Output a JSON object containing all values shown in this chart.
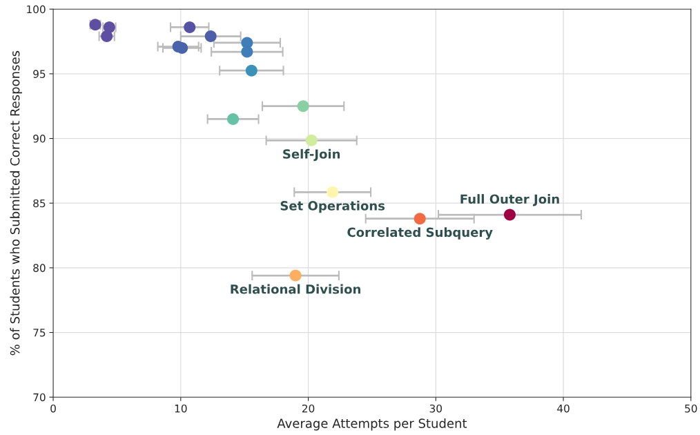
{
  "chart_data": {
    "type": "scatter",
    "xlabel": "Average Attempts per Student",
    "ylabel": "% of Students who Submitted Correct Responses",
    "x": [
      3.3,
      4.4,
      4.2,
      10.7,
      12.35,
      15.2,
      15.2,
      9.8,
      10.1,
      15.55,
      19.6,
      14.1,
      20.25,
      21.9,
      28.75,
      35.8,
      19.0
    ],
    "values": [
      98.8,
      98.6,
      97.9,
      98.6,
      97.9,
      97.4,
      96.7,
      97.1,
      97.0,
      95.25,
      92.5,
      91.5,
      89.85,
      85.85,
      83.8,
      84.1,
      79.4
    ],
    "xerrors": [
      0.4,
      0.5,
      0.6,
      1.5,
      2.35,
      2.6,
      2.8,
      1.6,
      1.5,
      2.5,
      3.2,
      2.0,
      3.55,
      3.0,
      4.25,
      5.6,
      3.4
    ],
    "colors": [
      "#5e4fa2",
      "#5e4fa2",
      "#5e4fa2",
      "#5752a3",
      "#4d5fa8",
      "#3f7eb8",
      "#3f7eb8",
      "#4a64ab",
      "#4a64ab",
      "#3b92b9",
      "#88cfa4",
      "#66c2a5",
      "#d1ec9c",
      "#fff5ae",
      "#f26944",
      "#9e0142",
      "#fdae61"
    ],
    "annotations": [
      {
        "text": "Self-Join",
        "x": 20.25,
        "y": 89.85
      },
      {
        "text": "Set Operations",
        "x": 21.9,
        "y": 85.85
      },
      {
        "text": "Correlated Subquery",
        "x": 28.75,
        "y": 83.8
      },
      {
        "text": "Full Outer Join",
        "x": 35.8,
        "y": 84.1
      },
      {
        "text": "Relational Division",
        "x": 19.0,
        "y": 79.4
      }
    ],
    "xlim": [
      0,
      50
    ],
    "ylim": [
      70,
      100
    ],
    "xticks": [
      0,
      10,
      20,
      30,
      40,
      50
    ],
    "yticks": [
      70,
      75,
      80,
      85,
      90,
      95,
      100
    ],
    "grid": true,
    "marker": "circle"
  }
}
